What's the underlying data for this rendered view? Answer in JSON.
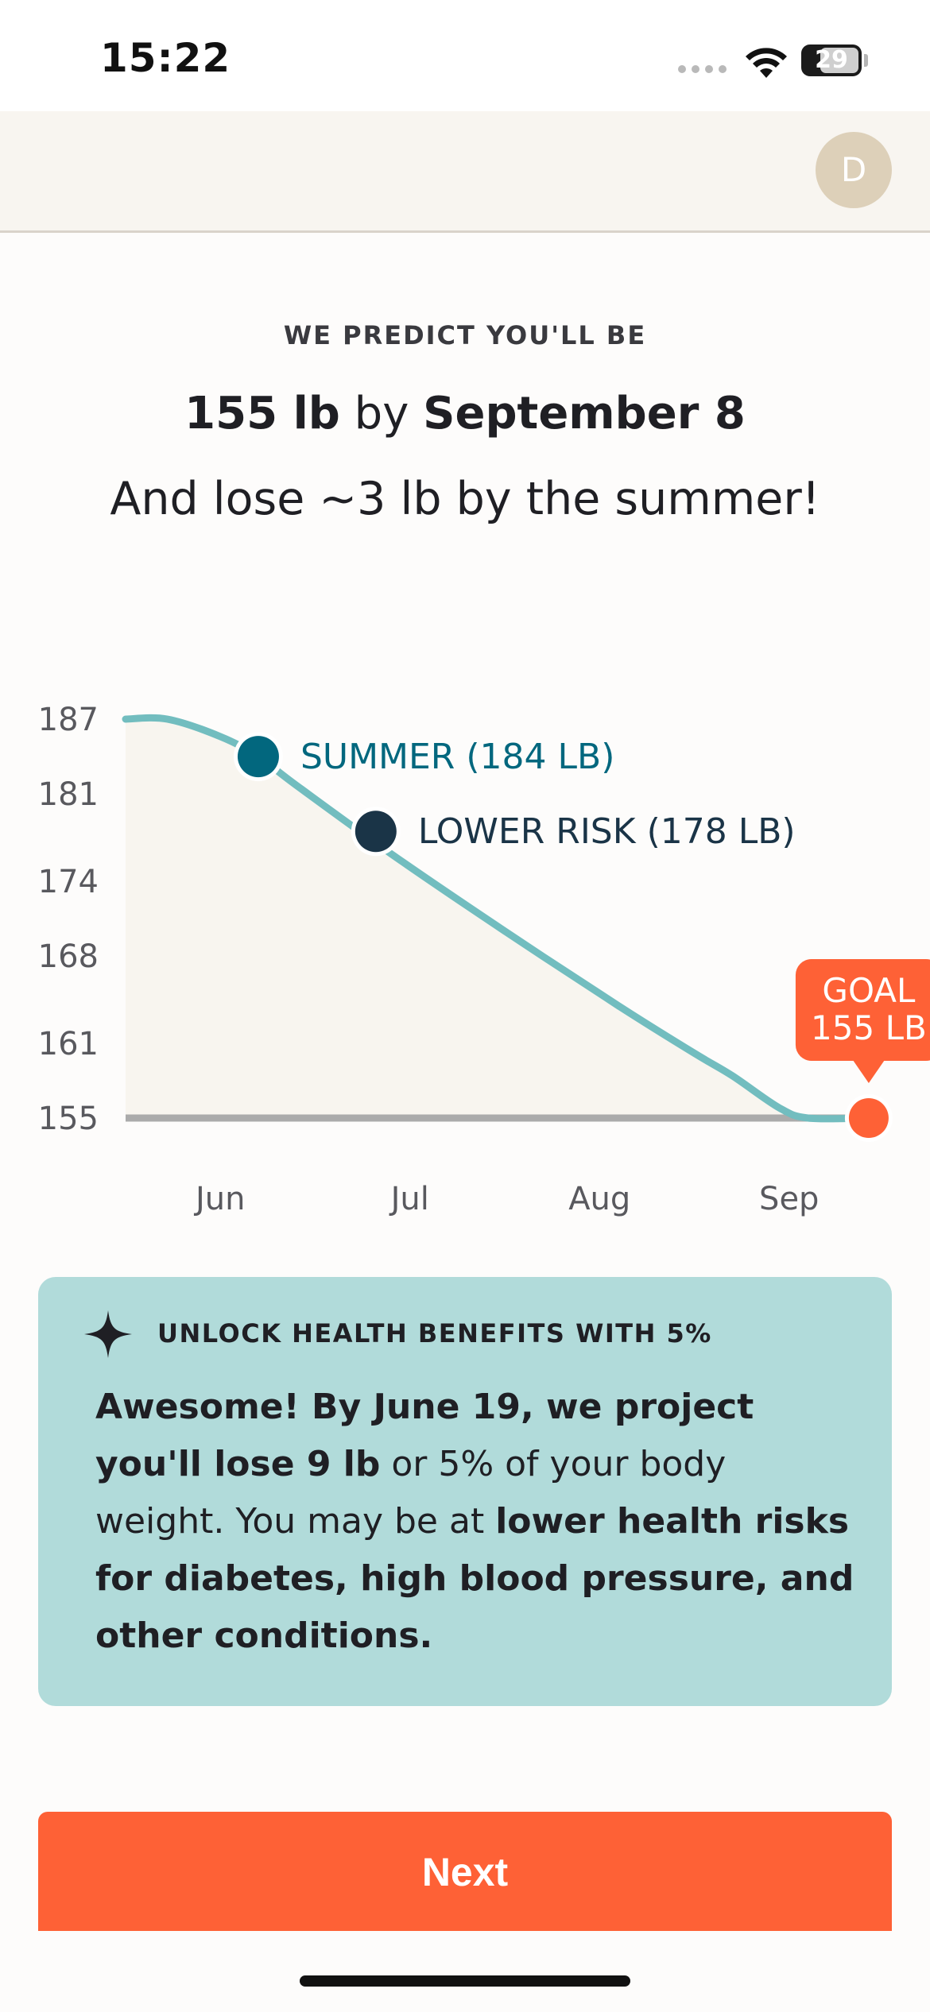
{
  "status_bar": {
    "time": "15:22",
    "battery": "29"
  },
  "header": {
    "avatar_initial": "D"
  },
  "headline": {
    "eyebrow": "WE PREDICT YOU'LL BE",
    "weight": "155 lb",
    "by": "by",
    "date": "September 8",
    "summer_text": "And lose ~3 lb by the summer!"
  },
  "chart_data": {
    "type": "area",
    "y_ticks": [
      187,
      181,
      174,
      168,
      161,
      155
    ],
    "x_ticks": [
      "Jun",
      "Jul",
      "Aug",
      "Sep"
    ],
    "ylim": [
      155,
      187
    ],
    "xlim": [
      0,
      4
    ],
    "series": [
      {
        "x": [
          0,
          0.22,
          0.5,
          0.7,
          0.9,
          1.4,
          2.0,
          2.6,
          3.0,
          3.2,
          3.45,
          3.6,
          3.9
        ],
        "y": [
          187,
          187,
          185.6,
          184,
          181.7,
          176.2,
          170,
          164,
          160.2,
          158.4,
          155.8,
          155,
          155
        ]
      }
    ],
    "markers": [
      {
        "label": "SUMMER (184 LB)",
        "x": 0.7,
        "y": 184,
        "color": "#02677e"
      },
      {
        "label": "LOWER RISK (178 LB)",
        "x": 1.32,
        "y": 178,
        "color": "#1a3447"
      },
      {
        "label_lines": [
          "GOAL",
          "155 LB"
        ],
        "x": 3.92,
        "y": 155,
        "color": "#fe6136"
      }
    ],
    "colors": {
      "line": "#72bdbf",
      "fill": "#f8f5ef",
      "baseline": "#ababab"
    }
  },
  "card": {
    "title": "UNLOCK HEALTH BENEFITS WITH 5%",
    "body_bold_1": "Awesome! By June 19, we project you'll lose 9 lb",
    "body_text_1": " or 5% of your body weight. You may be at ",
    "body_bold_2": "lower health risks for diabetes, high blood pressure, and other conditions."
  },
  "next_label": "Next",
  "colors": {
    "accent": "#fe6136",
    "card_bg": "#b1dbda",
    "header_bg": "#f8f5f0",
    "avatar": "#ddd0b9"
  }
}
